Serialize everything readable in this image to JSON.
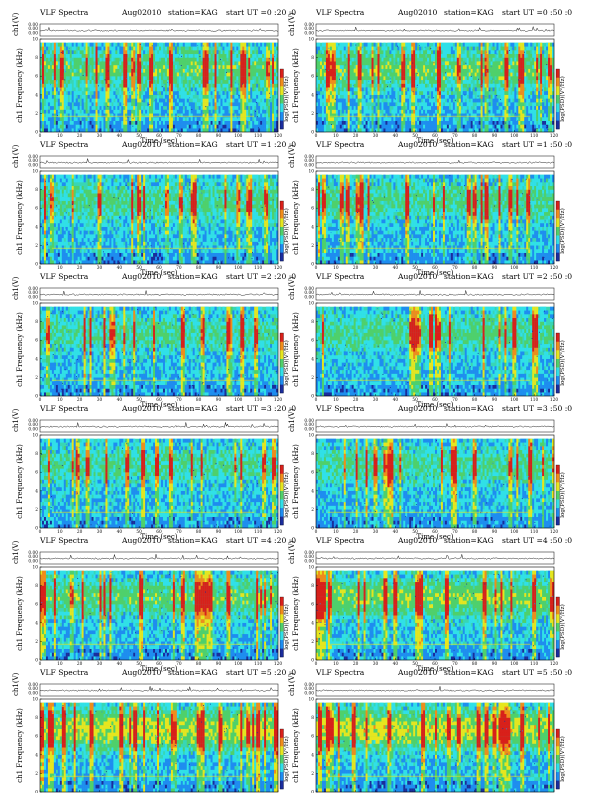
{
  "figure": {
    "title": "VLF Spectra",
    "date": "Aug02010",
    "station": "station=KAG",
    "start_label": "start  UT ="
  },
  "labels": {
    "waveform_ylabel": "ch1(V)",
    "spectrogram_ylabel": "ch1 Frequency  (kHz)",
    "xlabel": "Time  (sec)",
    "colorbar_label": "log(PSD)(V²/Hz)"
  },
  "chart_data": {
    "type": "heatmap",
    "panel_layout": "6 rows x 2 columns",
    "x_range": [
      0,
      120
    ],
    "x_ticks": [
      0,
      10,
      20,
      30,
      40,
      50,
      60,
      70,
      80,
      90,
      100,
      110,
      120
    ],
    "freq_range_khz": [
      0,
      10
    ],
    "freq_ticks": [
      0,
      2,
      4,
      6,
      8,
      10
    ],
    "waveform_ticks": [
      "0.00",
      "0.00",
      "0.00"
    ],
    "colorscale": [
      "#1a2c9c",
      "#1e8cf0",
      "#30e0e8",
      "#4fd06a",
      "#e6e61e",
      "#f08c1a",
      "#d8201a"
    ],
    "panels": [
      {
        "start_ut": "0 :20 :0",
        "intensity": 0.45
      },
      {
        "start_ut": "0 :50 :0",
        "intensity": 0.48
      },
      {
        "start_ut": "1 :20 :0",
        "intensity": 0.33
      },
      {
        "start_ut": "1 :50 :0",
        "intensity": 0.36
      },
      {
        "start_ut": "2 :20 :0",
        "intensity": 0.28
      },
      {
        "start_ut": "2 :50 :0",
        "intensity": 0.35
      },
      {
        "start_ut": "3 :20 :0",
        "intensity": 0.3
      },
      {
        "start_ut": "3 :50 :0",
        "intensity": 0.32
      },
      {
        "start_ut": "4 :20 :0",
        "intensity": 0.45
      },
      {
        "start_ut": "4 :50 :0",
        "intensity": 0.55
      },
      {
        "start_ut": "5 :20 :0",
        "intensity": 0.7
      },
      {
        "start_ut": "5 :50 :0",
        "intensity": 0.72
      }
    ]
  }
}
